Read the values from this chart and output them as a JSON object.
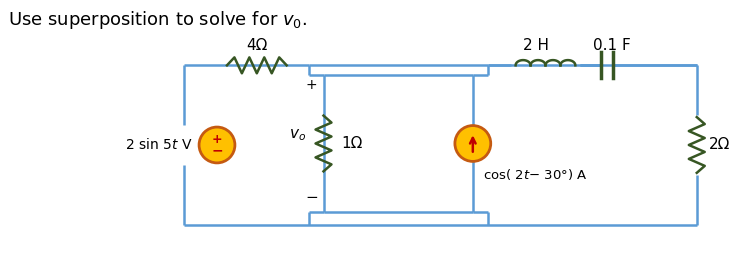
{
  "title": "Use superposition to solve for $v_0$.",
  "title_fontsize": 13,
  "wire_color": "#5b9bd5",
  "resistor_color": "#375623",
  "inductor_color": "#375623",
  "capacitor_color": "#375623",
  "source_fill": "#ffc000",
  "source_stroke": "#c55a11",
  "arrow_color": "#c00000",
  "bg_color": "#ffffff",
  "label_4ohm": "4Ω",
  "label_2H": "2 H",
  "label_01F": "0.1 F",
  "label_1ohm": "1Ω",
  "label_2ohm": "2Ω"
}
